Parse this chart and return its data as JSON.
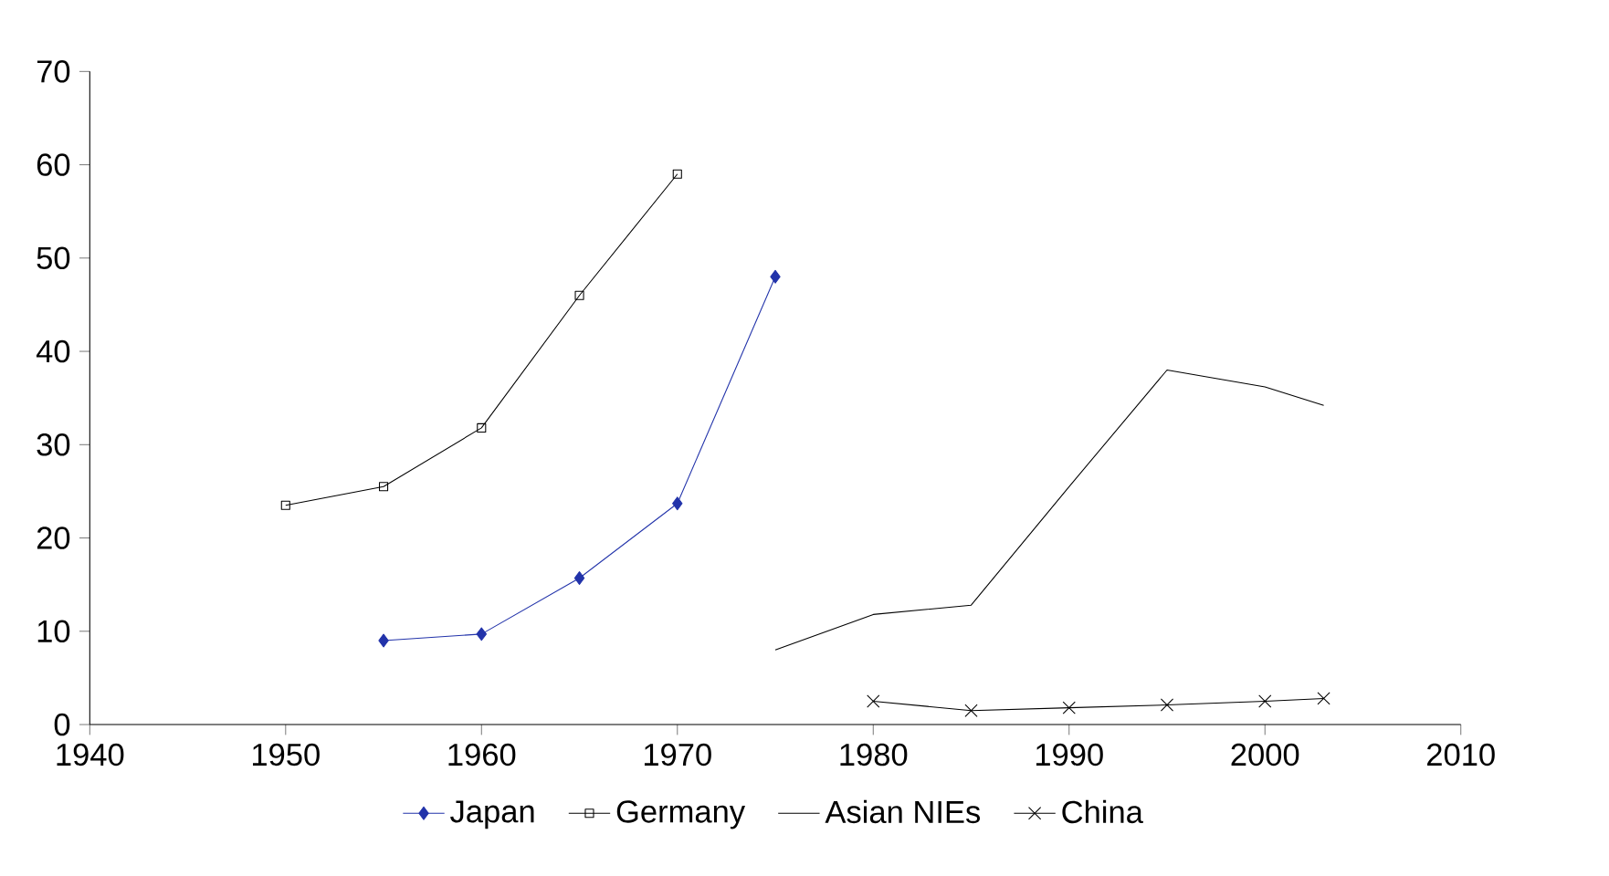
{
  "chart_data": {
    "type": "line",
    "xlim": [
      1940,
      2010
    ],
    "xticks": [
      1940,
      1950,
      1960,
      1970,
      1980,
      1990,
      2000,
      2010
    ],
    "ylim": [
      0,
      70
    ],
    "yticks": [
      0,
      10,
      20,
      30,
      40,
      50,
      60,
      70
    ],
    "grid": false,
    "legend": "bottom",
    "line_style": "solid",
    "series": [
      {
        "name": "Japan",
        "color": "#2233aa",
        "marker": "diamond",
        "x": [
          1955,
          1960,
          1965,
          1970,
          1975
        ],
        "values": [
          9.0,
          9.7,
          15.7,
          23.7,
          48.0
        ]
      },
      {
        "name": "Germany",
        "color": "#000000",
        "marker": "square",
        "x": [
          1950,
          1955,
          1960,
          1965,
          1970
        ],
        "values": [
          23.5,
          25.5,
          31.8,
          46.0,
          59.0
        ]
      },
      {
        "name": "Asian NIEs",
        "color": "#000000",
        "marker": "none",
        "x": [
          1975,
          1980,
          1985,
          1990,
          1995,
          2000,
          2003
        ],
        "values": [
          8.0,
          11.8,
          12.8,
          25.5,
          38.0,
          36.2,
          34.2
        ]
      },
      {
        "name": "China",
        "color": "#000000",
        "marker": "cross",
        "x": [
          1980,
          1985,
          1990,
          1995,
          2000,
          2003
        ],
        "values": [
          2.5,
          1.5,
          1.8,
          2.1,
          2.5,
          2.8
        ]
      }
    ]
  }
}
